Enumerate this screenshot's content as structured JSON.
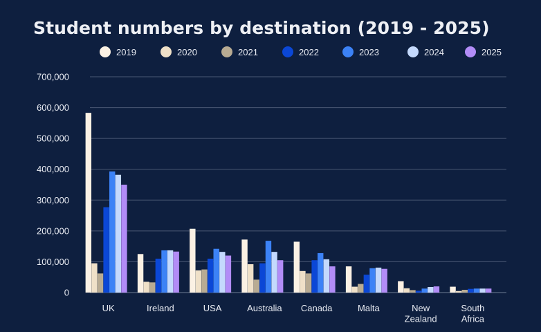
{
  "chart_data": {
    "type": "bar",
    "title": "Student numbers by destination (2019 - 2025)",
    "xlabel": "",
    "ylabel": "",
    "ylim": [
      0,
      700000
    ],
    "yticks": [
      0,
      100000,
      200000,
      300000,
      400000,
      500000,
      600000,
      700000
    ],
    "ytick_labels": [
      "0",
      "100,000",
      "200,000",
      "300,000",
      "400,000",
      "500,000",
      "600,000",
      "700,000"
    ],
    "categories": [
      [
        "UK"
      ],
      [
        "Ireland"
      ],
      [
        "USA"
      ],
      [
        "Australia"
      ],
      [
        "Canada"
      ],
      [
        "Malta"
      ],
      [
        "New",
        "Zealand"
      ],
      [
        "South",
        "Africa"
      ]
    ],
    "legend_position": "top",
    "grid": true,
    "series": [
      {
        "name": "2019",
        "color": "#fbf1e4",
        "values": [
          583000,
          125000,
          207000,
          172000,
          165000,
          85000,
          37000,
          19000
        ]
      },
      {
        "name": "2020",
        "color": "#efe0c8",
        "values": [
          95000,
          35000,
          72000,
          92000,
          70000,
          19000,
          14000,
          5000
        ]
      },
      {
        "name": "2021",
        "color": "#b8ab93",
        "values": [
          62000,
          33000,
          75000,
          42000,
          62000,
          28000,
          8000,
          9000
        ]
      },
      {
        "name": "2022",
        "color": "#0b47d6",
        "values": [
          277000,
          110000,
          110000,
          95000,
          105000,
          58000,
          6000,
          12000
        ]
      },
      {
        "name": "2023",
        "color": "#3c82f6",
        "values": [
          393000,
          137000,
          142000,
          168000,
          128000,
          79000,
          13000,
          13000
        ]
      },
      {
        "name": "2024",
        "color": "#c4d9fd",
        "values": [
          382000,
          137000,
          132000,
          132000,
          108000,
          81000,
          18000,
          13000
        ]
      },
      {
        "name": "2025",
        "color": "#b28cf7",
        "values": [
          350000,
          133000,
          120000,
          105000,
          85000,
          77000,
          20000,
          13000
        ]
      }
    ]
  }
}
